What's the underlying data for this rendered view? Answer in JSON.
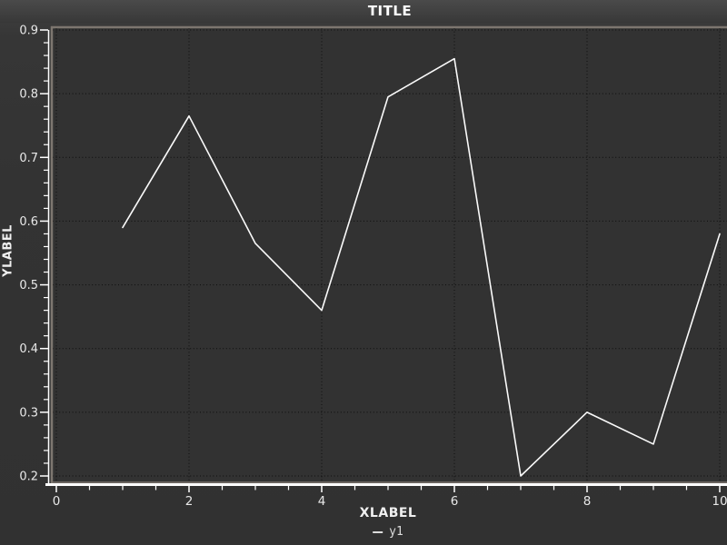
{
  "window": {
    "background": "#333333",
    "titlebar_gradient_top": "#4a4a4a",
    "titlebar_gradient_bottom": "#383838"
  },
  "chart_data": {
    "type": "line",
    "title": "TITLE",
    "xlabel": "XLABEL",
    "ylabel": "YLABEL",
    "series": [
      {
        "name": "y1",
        "x": [
          1,
          2,
          3,
          4,
          5,
          6,
          7,
          8,
          9,
          10
        ],
        "y": [
          0.59,
          0.765,
          0.565,
          0.46,
          0.795,
          0.855,
          0.2,
          0.3,
          0.25,
          0.58
        ],
        "color": "#fafafa"
      }
    ],
    "xlim": [
      0,
      10
    ],
    "ylim": [
      0.2,
      0.9
    ],
    "x_ticks": [
      0,
      2,
      4,
      6,
      8,
      10
    ],
    "x_tick_labels": [
      "0",
      "2",
      "4",
      "6",
      "8",
      "10"
    ],
    "y_ticks": [
      0.2,
      0.3,
      0.4,
      0.5,
      0.6,
      0.7,
      0.8,
      0.9
    ],
    "y_tick_labels": [
      "0.2",
      "0.3",
      "0.4",
      "0.5",
      "0.6",
      "0.7",
      "0.8",
      "0.9"
    ],
    "x_minor_step": 0.5,
    "y_minor_step": 0.02,
    "grid": "dotted, major ticks only",
    "legend_position": "bottom-center",
    "colors": {
      "plot_background": "#323232",
      "frame": "#7d766f",
      "axis_line": "#ffffff",
      "grid_dots": "#0d0d0d",
      "tick_text": "#e8e8e8",
      "line": "#fafafa"
    }
  }
}
